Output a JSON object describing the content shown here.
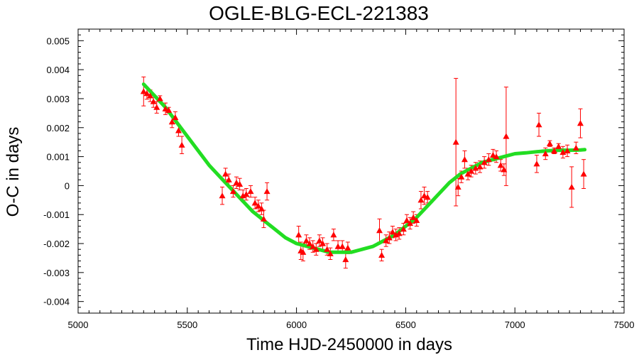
{
  "chart_data": {
    "type": "scatter",
    "title": "OGLE-BLG-ECL-221383",
    "xlabel": "Time HJD-2450000 in days",
    "ylabel": "O-C in days",
    "xlim": [
      5000,
      7500
    ],
    "ylim": [
      -0.0044,
      0.0054
    ],
    "x_ticks": [
      5000,
      5500,
      6000,
      6500,
      7000,
      7500
    ],
    "x_tick_labels": [
      "5000",
      "5500",
      "6000",
      "6500",
      "7000",
      "7500"
    ],
    "y_ticks": [
      -0.004,
      -0.003,
      -0.002,
      -0.001,
      0,
      0.001,
      0.002,
      0.003,
      0.004,
      0.005
    ],
    "y_tick_labels": [
      "-0.004",
      "-0.003",
      "-0.002",
      "-0.001",
      "0",
      "0.001",
      "0.002",
      "0.003",
      "0.004",
      "0.005"
    ],
    "grid": false,
    "colors": {
      "points": "#ff0000",
      "fit": "#22dd22",
      "axes": "#000000"
    },
    "series": [
      {
        "kind": "points-with-errorbars",
        "marker": "triangle",
        "points": [
          {
            "x": 5300,
            "y": 0.00325,
            "err": 0.0005
          },
          {
            "x": 5315,
            "y": 0.00318,
            "err": 0.0002
          },
          {
            "x": 5330,
            "y": 0.0031,
            "err": 0.0002
          },
          {
            "x": 5345,
            "y": 0.0029,
            "err": 0.0002
          },
          {
            "x": 5360,
            "y": 0.0027,
            "err": 0.0002
          },
          {
            "x": 5375,
            "y": 0.003,
            "err": 0.0001
          },
          {
            "x": 5400,
            "y": 0.00265,
            "err": 0.0002
          },
          {
            "x": 5415,
            "y": 0.0026,
            "err": 0.0001
          },
          {
            "x": 5430,
            "y": 0.0022,
            "err": 0.0002
          },
          {
            "x": 5445,
            "y": 0.00235,
            "err": 0.0002
          },
          {
            "x": 5460,
            "y": 0.0019,
            "err": 0.0002
          },
          {
            "x": 5475,
            "y": 0.0014,
            "err": 0.0003
          },
          {
            "x": 5660,
            "y": -0.00035,
            "err": 0.0003
          },
          {
            "x": 5675,
            "y": 0.0004,
            "err": 0.0002
          },
          {
            "x": 5690,
            "y": 0.0002,
            "err": 0.0002
          },
          {
            "x": 5710,
            "y": -0.0002,
            "err": 0.0002
          },
          {
            "x": 5725,
            "y": 0.0001,
            "err": 0.0002
          },
          {
            "x": 5740,
            "y": 5e-05,
            "err": 0.0002
          },
          {
            "x": 5755,
            "y": -0.00035,
            "err": 0.0002
          },
          {
            "x": 5770,
            "y": -0.0003,
            "err": 0.0002
          },
          {
            "x": 5790,
            "y": -0.0002,
            "err": 0.0002
          },
          {
            "x": 5810,
            "y": -0.0006,
            "err": 0.0002
          },
          {
            "x": 5825,
            "y": -0.0007,
            "err": 0.0002
          },
          {
            "x": 5840,
            "y": -0.0008,
            "err": 0.0002
          },
          {
            "x": 5850,
            "y": -0.00115,
            "err": 0.0003
          },
          {
            "x": 5865,
            "y": -0.0002,
            "err": 0.0003
          },
          {
            "x": 6010,
            "y": -0.0017,
            "err": 0.0003
          },
          {
            "x": 6020,
            "y": -0.00225,
            "err": 0.0003
          },
          {
            "x": 6030,
            "y": -0.0023,
            "err": 0.0003
          },
          {
            "x": 6045,
            "y": -0.0019,
            "err": 0.0002
          },
          {
            "x": 6060,
            "y": -0.002,
            "err": 0.0002
          },
          {
            "x": 6075,
            "y": -0.0021,
            "err": 0.0002
          },
          {
            "x": 6090,
            "y": -0.0022,
            "err": 0.0002
          },
          {
            "x": 6105,
            "y": -0.0019,
            "err": 0.0002
          },
          {
            "x": 6120,
            "y": -0.002,
            "err": 0.0002
          },
          {
            "x": 6140,
            "y": -0.0022,
            "err": 0.0002
          },
          {
            "x": 6155,
            "y": -0.00235,
            "err": 0.0002
          },
          {
            "x": 6170,
            "y": -0.0017,
            "err": 0.0002
          },
          {
            "x": 6190,
            "y": -0.0021,
            "err": 0.0002
          },
          {
            "x": 6210,
            "y": -0.0021,
            "err": 0.0002
          },
          {
            "x": 6225,
            "y": -0.00255,
            "err": 0.0003
          },
          {
            "x": 6235,
            "y": -0.00215,
            "err": 0.0002
          },
          {
            "x": 6380,
            "y": -0.00155,
            "err": 0.0004
          },
          {
            "x": 6390,
            "y": -0.0024,
            "err": 0.0002
          },
          {
            "x": 6410,
            "y": -0.0019,
            "err": 0.0002
          },
          {
            "x": 6425,
            "y": -0.0018,
            "err": 0.0002
          },
          {
            "x": 6440,
            "y": -0.0016,
            "err": 0.0002
          },
          {
            "x": 6455,
            "y": -0.0017,
            "err": 0.0002
          },
          {
            "x": 6470,
            "y": -0.00165,
            "err": 0.0002
          },
          {
            "x": 6490,
            "y": -0.0015,
            "err": 0.0002
          },
          {
            "x": 6505,
            "y": -0.0012,
            "err": 0.0002
          },
          {
            "x": 6520,
            "y": -0.0013,
            "err": 0.0002
          },
          {
            "x": 6535,
            "y": -0.0011,
            "err": 0.0002
          },
          {
            "x": 6550,
            "y": -0.0012,
            "err": 0.0002
          },
          {
            "x": 6570,
            "y": -0.0005,
            "err": 0.0003
          },
          {
            "x": 6585,
            "y": -0.00035,
            "err": 0.0003
          },
          {
            "x": 6600,
            "y": -0.0004,
            "err": 0.0002
          },
          {
            "x": 6730,
            "y": 0.0015,
            "err": 0.0022
          },
          {
            "x": 6740,
            "y": -5e-05,
            "err": 0.0003
          },
          {
            "x": 6755,
            "y": 0.0003,
            "err": 0.0002
          },
          {
            "x": 6770,
            "y": 0.0009,
            "err": 0.0003
          },
          {
            "x": 6785,
            "y": 0.0004,
            "err": 0.0002
          },
          {
            "x": 6800,
            "y": 0.0005,
            "err": 0.0002
          },
          {
            "x": 6820,
            "y": 0.0006,
            "err": 0.0002
          },
          {
            "x": 6840,
            "y": 0.00065,
            "err": 0.0002
          },
          {
            "x": 6860,
            "y": 0.0008,
            "err": 0.0002
          },
          {
            "x": 6880,
            "y": 0.0009,
            "err": 0.0002
          },
          {
            "x": 6900,
            "y": 0.00105,
            "err": 0.0002
          },
          {
            "x": 6915,
            "y": 0.001,
            "err": 0.0002
          },
          {
            "x": 6935,
            "y": 0.0007,
            "err": 0.0002
          },
          {
            "x": 6950,
            "y": 0.00055,
            "err": 0.0002
          },
          {
            "x": 6960,
            "y": 0.0017,
            "err": 0.0017
          },
          {
            "x": 7100,
            "y": 0.00075,
            "err": 0.0003
          },
          {
            "x": 7110,
            "y": 0.0021,
            "err": 0.0004
          },
          {
            "x": 7140,
            "y": 0.0011,
            "err": 0.0002
          },
          {
            "x": 7160,
            "y": 0.00145,
            "err": 0.0001
          },
          {
            "x": 7180,
            "y": 0.0012,
            "err": 0.0001
          },
          {
            "x": 7200,
            "y": 0.00135,
            "err": 0.0001
          },
          {
            "x": 7220,
            "y": 0.00115,
            "err": 0.0002
          },
          {
            "x": 7240,
            "y": 0.0012,
            "err": 0.0002
          },
          {
            "x": 7260,
            "y": -5e-05,
            "err": 0.0007
          },
          {
            "x": 7280,
            "y": 0.0013,
            "err": 0.0002
          },
          {
            "x": 7300,
            "y": 0.00215,
            "err": 0.0005
          },
          {
            "x": 7315,
            "y": 0.0004,
            "err": 0.0005
          }
        ]
      },
      {
        "kind": "fit-curve",
        "x": [
          5300,
          5350,
          5400,
          5450,
          5500,
          5550,
          5600,
          5650,
          5700,
          5750,
          5800,
          5850,
          5900,
          5950,
          6000,
          6050,
          6100,
          6150,
          6200,
          6250,
          6300,
          6350,
          6400,
          6450,
          6500,
          6550,
          6600,
          6650,
          6700,
          6750,
          6800,
          6850,
          6900,
          6950,
          7000,
          7050,
          7100,
          7150,
          7200,
          7250,
          7300,
          7320
        ],
        "y": [
          0.0035,
          0.0031,
          0.0027,
          0.0022,
          0.0017,
          0.0012,
          0.0007,
          0.0003,
          -0.0001,
          -0.0005,
          -0.0009,
          -0.0012,
          -0.0015,
          -0.0018,
          -0.002,
          -0.0021,
          -0.0022,
          -0.0023,
          -0.0023,
          -0.0023,
          -0.0022,
          -0.0021,
          -0.0019,
          -0.0017,
          -0.0014,
          -0.0011,
          -0.0007,
          -0.0003,
          0.0001,
          0.0004,
          0.0006,
          0.0008,
          0.0009,
          0.001,
          0.0011,
          0.00113,
          0.00117,
          0.0012,
          0.00122,
          0.00122,
          0.00123,
          0.00124
        ]
      }
    ]
  }
}
